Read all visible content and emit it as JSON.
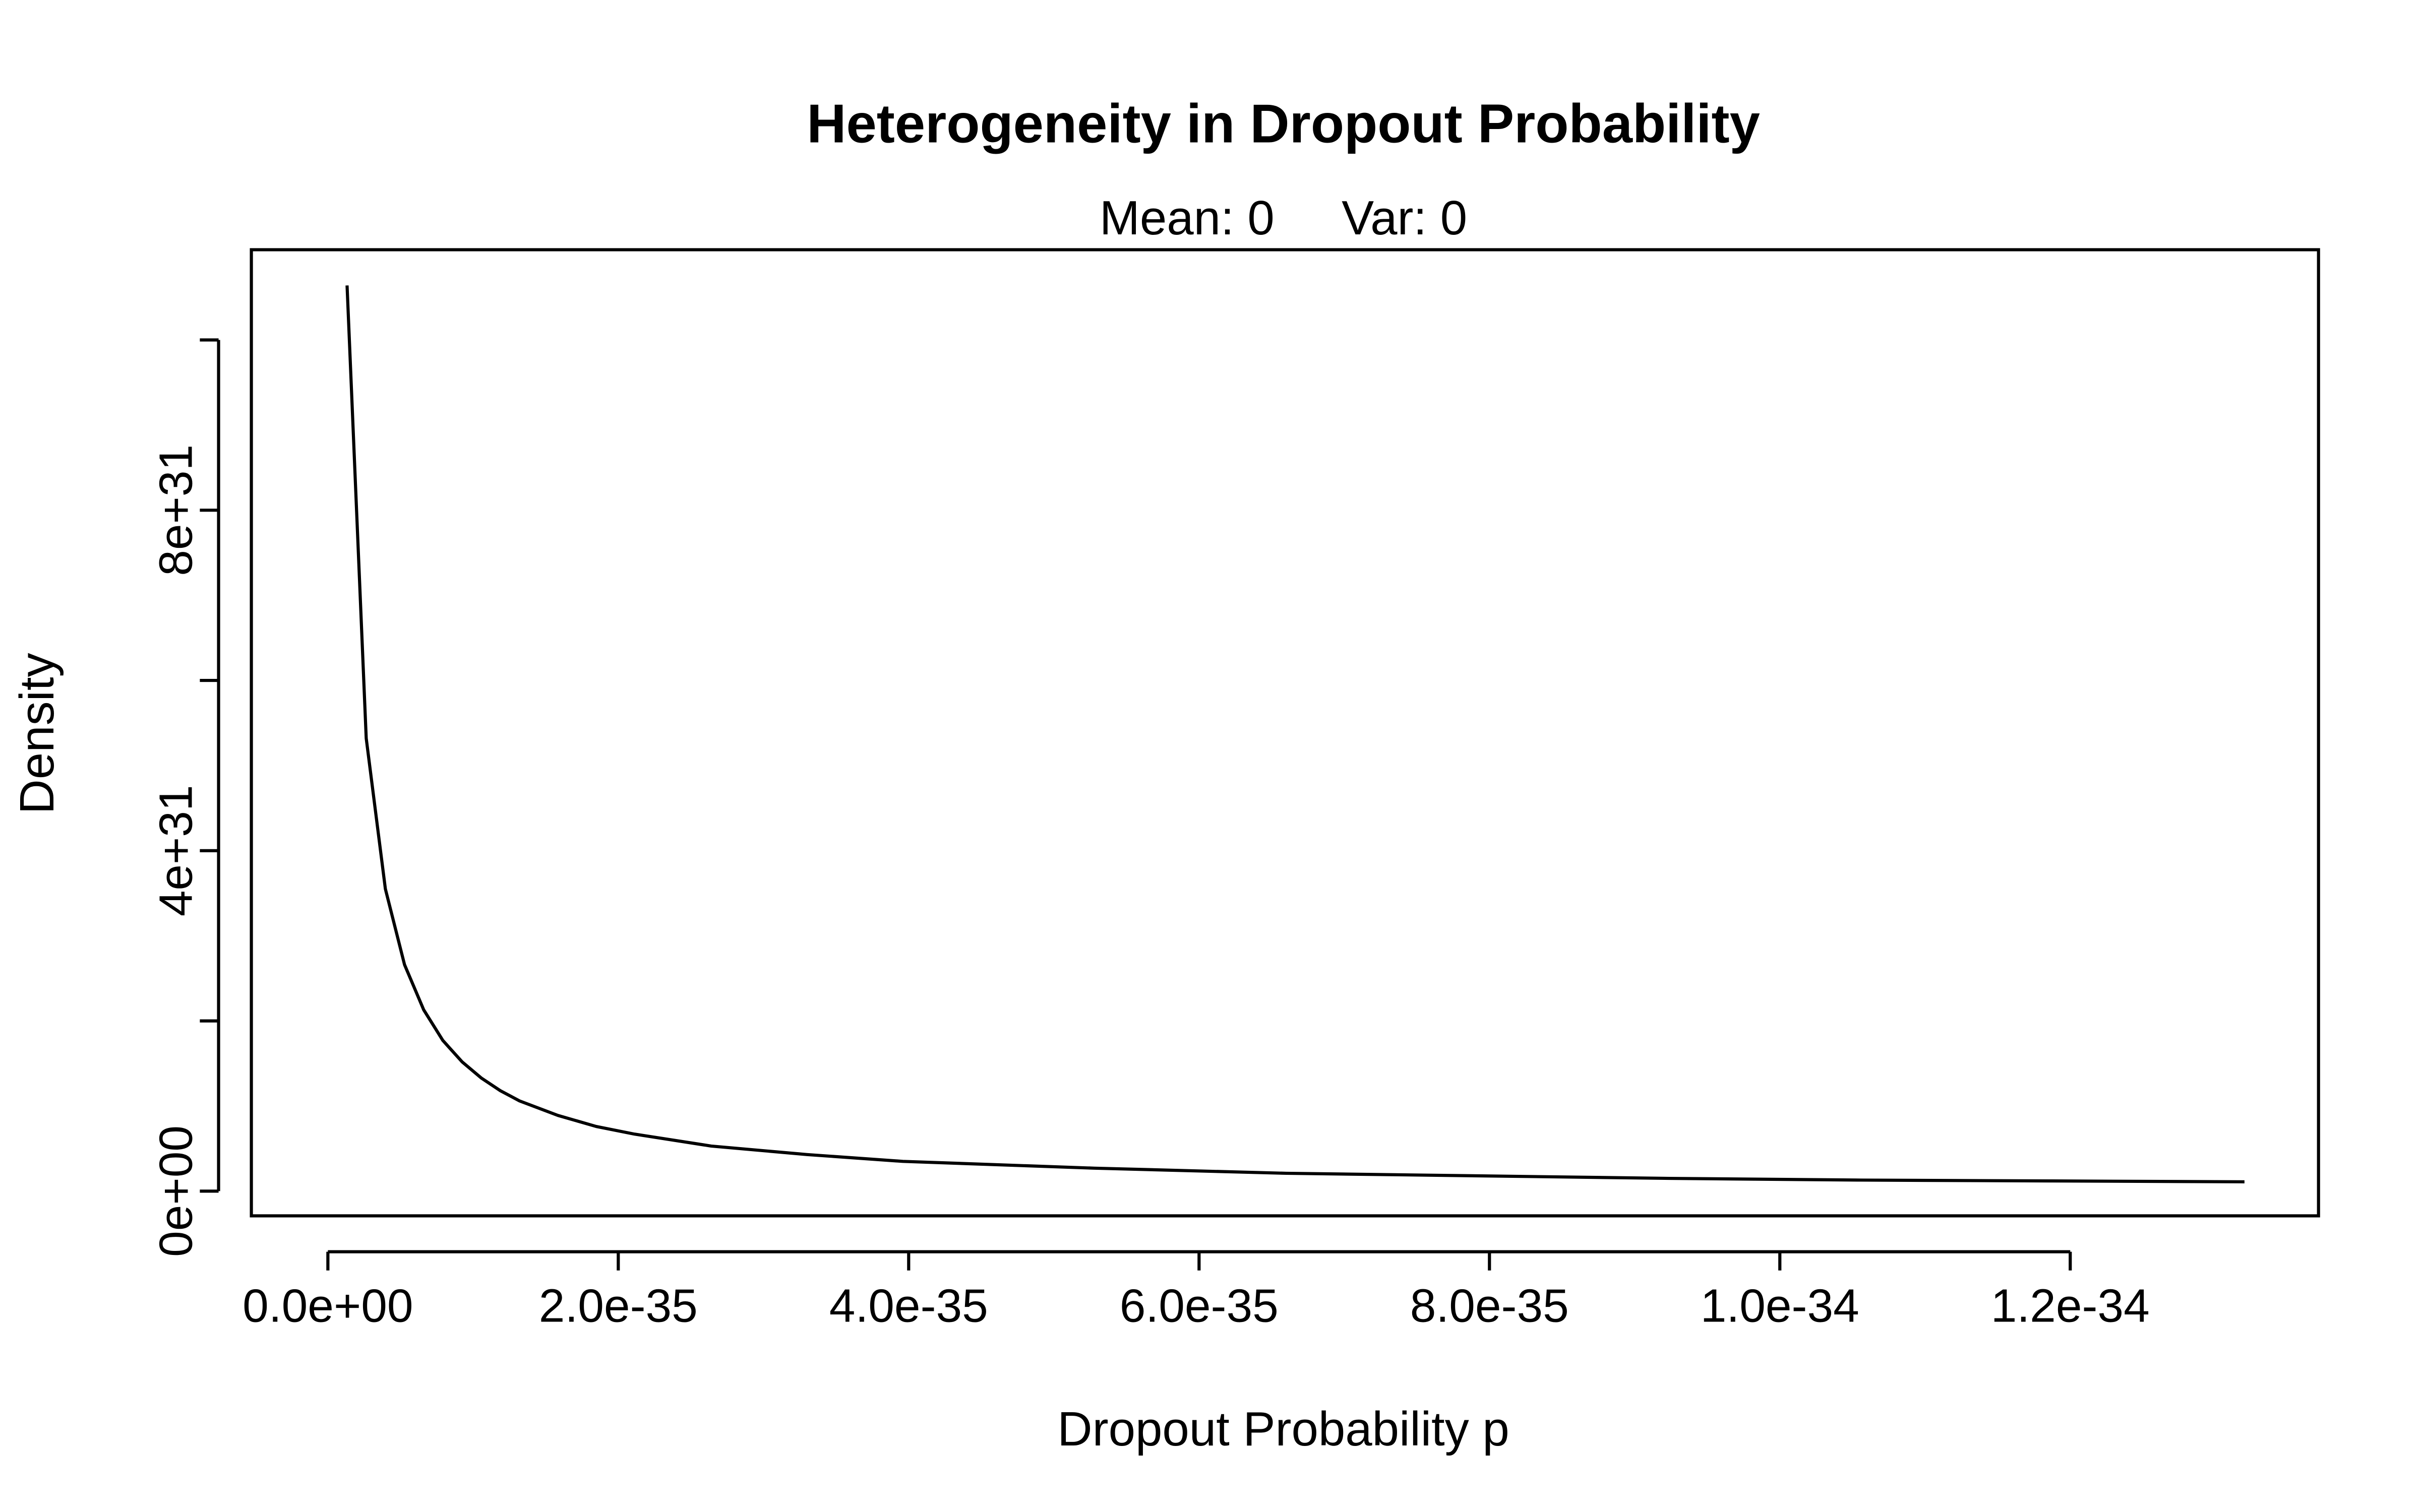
{
  "chart_data": {
    "type": "line",
    "title": "Heterogeneity in Dropout Probability",
    "subtitle": "Mean: 0     Var: 0",
    "x_label": "Dropout Probability p",
    "y_label": "Density",
    "x": [
      1.32e-36,
      2.64e-36,
      3.96e-36,
      5.28e-36,
      6.6e-36,
      7.92e-36,
      9.24e-36,
      1.056e-35,
      1.188e-35,
      1.32e-35,
      1.584e-35,
      1.848e-35,
      2.112e-35,
      2.64e-35,
      3.3e-35,
      3.96e-35,
      5.28e-35,
      6.6e-35,
      7.92e-35,
      9.24e-35,
      1.056e-34,
      1.188e-34,
      1.32e-34
    ],
    "series": [
      {
        "name": "Density",
        "color": "#000000",
        "values": [
          1.064e+32,
          5.32e+31,
          3.55e+31,
          2.66e+31,
          2.13e+31,
          1.77e+31,
          1.52e+31,
          1.33e+31,
          1.18e+31,
          1.06e+31,
          8.9e+30,
          7.6e+30,
          6.7e+30,
          5.3e+30,
          4.3e+30,
          3.5e+30,
          2.7e+30,
          2.1e+30,
          1.8e+30,
          1.5e+30,
          1.3e+30,
          1.2e+30,
          1.1e+30
        ]
      }
    ],
    "xlim": [
      -5.27e-36,
      1.371e-34
    ],
    "ylim": [
      -2.9e+30,
      1.106e+32
    ],
    "xticks": [
      {
        "value": 0,
        "label": "0.0e+00"
      },
      {
        "value": 2e-35,
        "label": "2.0e-35"
      },
      {
        "value": 4e-35,
        "label": "4.0e-35"
      },
      {
        "value": 6e-35,
        "label": "6.0e-35"
      },
      {
        "value": 8e-35,
        "label": "8.0e-35"
      },
      {
        "value": 1e-34,
        "label": "1.0e-34"
      },
      {
        "value": 1.2e-34,
        "label": "1.2e-34"
      }
    ],
    "yticks": [
      {
        "value": 0,
        "label": "0e+00"
      },
      {
        "value": 2e+31,
        "label": null
      },
      {
        "value": 4e+31,
        "label": "4e+31"
      },
      {
        "value": 6e+31,
        "label": null
      },
      {
        "value": 8e+31,
        "label": "8e+31"
      },
      {
        "value": 1e+32,
        "label": null
      }
    ],
    "grid": false
  }
}
